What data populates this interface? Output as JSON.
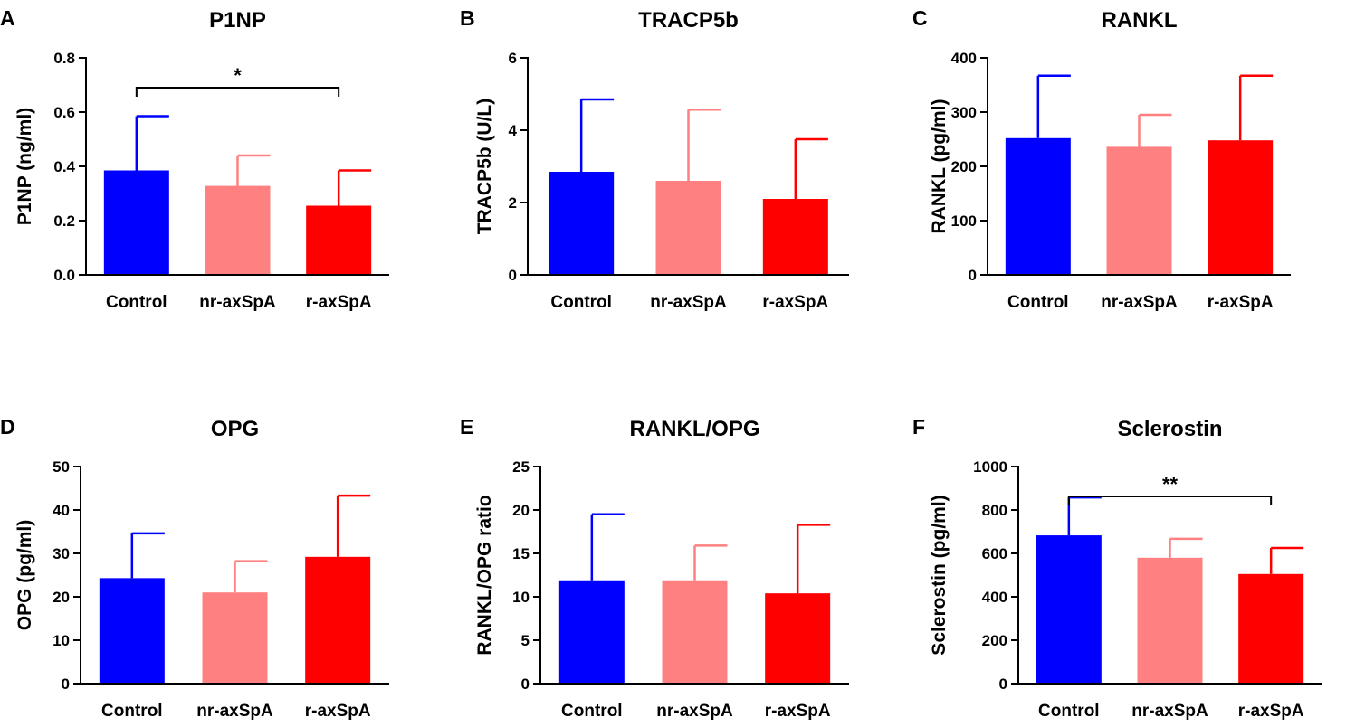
{
  "figure": {
    "colors": {
      "Control": "#0000ff",
      "nr-axSpA": "#ff8080",
      "r-axSpA": "#ff0000"
    }
  },
  "chart_data": [
    {
      "panel": "A",
      "type": "bar",
      "title": "P1NP",
      "xlabel": "",
      "ylabel": "P1NP (ng/ml)",
      "categories": [
        "Control",
        "nr-axSpA",
        "r-axSpA"
      ],
      "values": [
        0.385,
        0.328,
        0.255
      ],
      "errors": [
        0.2,
        0.112,
        0.13
      ],
      "ylim": [
        0,
        0.8
      ],
      "yticks": [
        0,
        0.2,
        0.4,
        0.6,
        0.8
      ],
      "ytick_labels": [
        "0.0",
        "0.2",
        "0.4",
        "0.6",
        "0.8"
      ],
      "significance": {
        "from": "Control",
        "to": "r-axSpA",
        "label": "*"
      }
    },
    {
      "panel": "B",
      "type": "bar",
      "title": "TRACP5b",
      "xlabel": "",
      "ylabel": "TRACP5b (U/L)",
      "categories": [
        "Control",
        "nr-axSpA",
        "r-axSpA"
      ],
      "values": [
        2.85,
        2.6,
        2.1
      ],
      "errors": [
        2.0,
        1.97,
        1.65
      ],
      "ylim": [
        0,
        6
      ],
      "yticks": [
        0,
        2,
        4,
        6
      ],
      "ytick_labels": [
        "0",
        "2",
        "4",
        "6"
      ],
      "significance": null
    },
    {
      "panel": "C",
      "type": "bar",
      "title": "RANKL",
      "xlabel": "",
      "ylabel": "RANKL (pg/ml)",
      "categories": [
        "Control",
        "nr-axSpA",
        "r-axSpA"
      ],
      "values": [
        252,
        236,
        248
      ],
      "errors": [
        115,
        59,
        119
      ],
      "ylim": [
        0,
        400
      ],
      "yticks": [
        0,
        100,
        200,
        300,
        400
      ],
      "ytick_labels": [
        "0",
        "100",
        "200",
        "300",
        "400"
      ],
      "significance": null
    },
    {
      "panel": "D",
      "type": "bar",
      "title": "OPG",
      "xlabel": "",
      "ylabel": "OPG (pg/ml)",
      "categories": [
        "Control",
        "nr-axSpA",
        "r-axSpA"
      ],
      "values": [
        24.3,
        21.0,
        29.2
      ],
      "errors": [
        10.3,
        7.2,
        14.1
      ],
      "ylim": [
        0,
        50
      ],
      "yticks": [
        0,
        10,
        20,
        30,
        40,
        50
      ],
      "ytick_labels": [
        "0",
        "10",
        "20",
        "30",
        "40",
        "50"
      ],
      "significance": null
    },
    {
      "panel": "E",
      "type": "bar",
      "title": "RANKL/OPG",
      "xlabel": "",
      "ylabel": "RANKL/OPG ratio",
      "categories": [
        "Control",
        "nr-axSpA",
        "r-axSpA"
      ],
      "values": [
        11.9,
        11.9,
        10.4
      ],
      "errors": [
        7.6,
        4.0,
        7.9
      ],
      "ylim": [
        0,
        25
      ],
      "yticks": [
        0,
        5,
        10,
        15,
        20,
        25
      ],
      "ytick_labels": [
        "0",
        "5",
        "10",
        "15",
        "20",
        "25"
      ],
      "significance": null
    },
    {
      "panel": "F",
      "type": "bar",
      "title": "Sclerostin",
      "xlabel": "",
      "ylabel": "Sclerostin (pg/ml)",
      "categories": [
        "Control",
        "nr-axSpA",
        "r-axSpA"
      ],
      "values": [
        683,
        580,
        505
      ],
      "errors": [
        175,
        87,
        120
      ],
      "ylim": [
        0,
        1000
      ],
      "yticks": [
        0,
        200,
        400,
        600,
        800,
        1000
      ],
      "ytick_labels": [
        "0",
        "200",
        "400",
        "600",
        "800",
        "1000"
      ],
      "significance": {
        "from": "Control",
        "to": "r-axSpA",
        "label": "**"
      }
    }
  ]
}
